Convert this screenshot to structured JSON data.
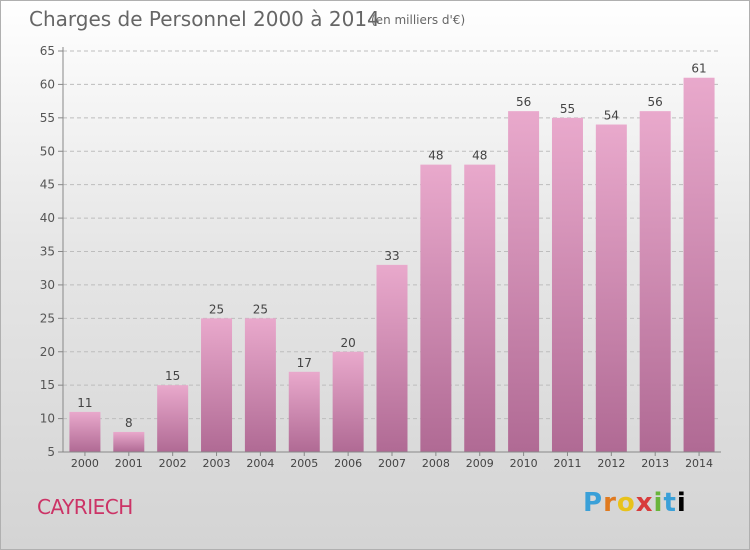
{
  "header": {
    "title": "Charges de Personnel 2000 à 2014",
    "subtitle": "(en milliers d'€)"
  },
  "commune": "CAYRIECH",
  "logo": {
    "text": "Proxiti"
  },
  "colors": {
    "bar_top": "#e9a9cc",
    "bar_bottom": "#b06a94",
    "grid": "#bdbdbd",
    "commune": "#cc3366"
  },
  "chart_data": {
    "type": "bar",
    "categories": [
      "2000",
      "2001",
      "2002",
      "2003",
      "2004",
      "2005",
      "2006",
      "2007",
      "2008",
      "2009",
      "2010",
      "2011",
      "2012",
      "2013",
      "2014"
    ],
    "values": [
      11,
      8,
      15,
      25,
      25,
      17,
      20,
      33,
      48,
      48,
      56,
      55,
      54,
      56,
      61
    ],
    "ylim": [
      5,
      65
    ],
    "yticks": [
      5,
      10,
      15,
      20,
      25,
      30,
      35,
      40,
      45,
      50,
      55,
      60,
      65
    ],
    "grid": true,
    "data_labels": true
  }
}
